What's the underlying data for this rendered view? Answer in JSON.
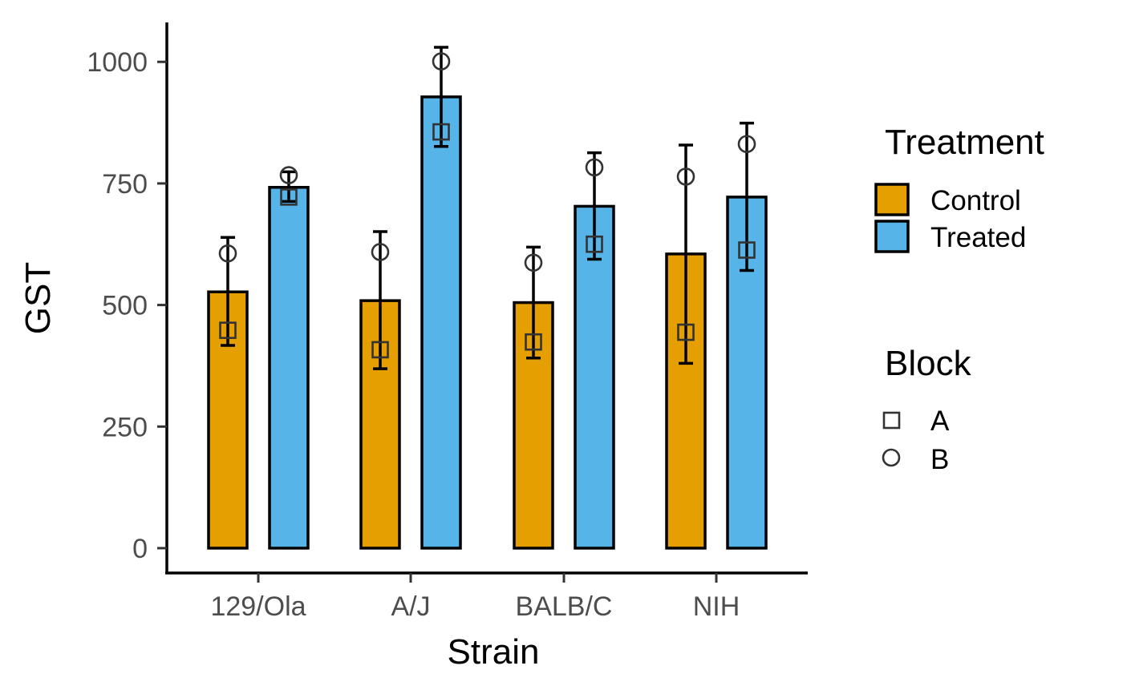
{
  "chart_data": {
    "type": "bar",
    "xlabel": "Strain",
    "ylabel": "GST",
    "categories": [
      "129/Ola",
      "A/J",
      "BALB/C",
      "NIH"
    ],
    "ylim": [
      -50,
      1080
    ],
    "yticks": [
      0,
      250,
      500,
      750,
      1000
    ],
    "ytick_labels": [
      "0",
      "250",
      "500",
      "750",
      "1000"
    ],
    "grid": false,
    "legend_position": "right",
    "series": [
      {
        "name": "Control",
        "color": "#E69F00",
        "values": [
          527,
          509,
          505,
          605
        ],
        "error_low": [
          417,
          369,
          391,
          380
        ],
        "error_high": [
          639,
          651,
          619,
          829
        ],
        "block_A": [
          448,
          408,
          424,
          444
        ],
        "block_B": [
          606,
          609,
          587,
          764
        ]
      },
      {
        "name": "Treated",
        "color": "#56B4E9",
        "values": [
          742,
          928,
          703,
          722
        ],
        "error_low": [
          713,
          826,
          594,
          571
        ],
        "error_high": [
          774,
          1030,
          813,
          874
        ],
        "block_A": [
          722,
          856,
          625,
          613
        ],
        "block_B": [
          767,
          1001,
          783,
          831
        ]
      }
    ],
    "legend": {
      "treatment_title": "Treatment",
      "treatment_items": [
        "Control",
        "Treated"
      ],
      "block_title": "Block",
      "block_items": [
        "A",
        "B"
      ],
      "block_shapes": [
        "square-icon",
        "circle-icon"
      ]
    }
  }
}
